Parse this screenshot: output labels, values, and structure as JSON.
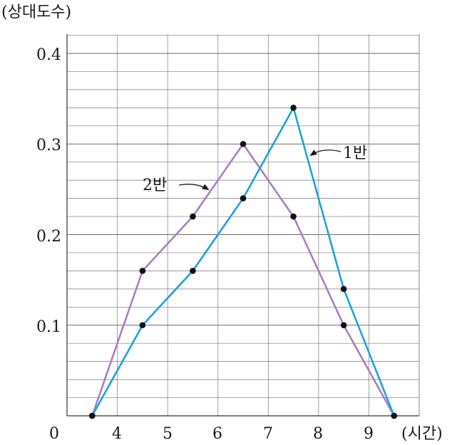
{
  "chart_data": {
    "type": "line",
    "ylabel": "(상대도수)",
    "xlabel": "(시간)",
    "origin_label": "0",
    "x_ticks": [
      "4",
      "5",
      "6",
      "7",
      "8",
      "9"
    ],
    "y_ticks": [
      "0.1",
      "0.2",
      "0.3",
      "0.4"
    ],
    "x_range": [
      3,
      10
    ],
    "ylim": [
      0,
      0.4
    ],
    "grid": true,
    "x": [
      3.5,
      4.5,
      5.5,
      6.5,
      7.5,
      8.5,
      9.5
    ],
    "series": [
      {
        "name": "1반",
        "color": "#1aa3e0",
        "values": [
          0,
          0.1,
          0.16,
          0.24,
          0.34,
          0.14,
          0
        ]
      },
      {
        "name": "2반",
        "color": "#a97fc0",
        "values": [
          0,
          0.16,
          0.22,
          0.3,
          0.22,
          0.1,
          0
        ]
      }
    ]
  }
}
